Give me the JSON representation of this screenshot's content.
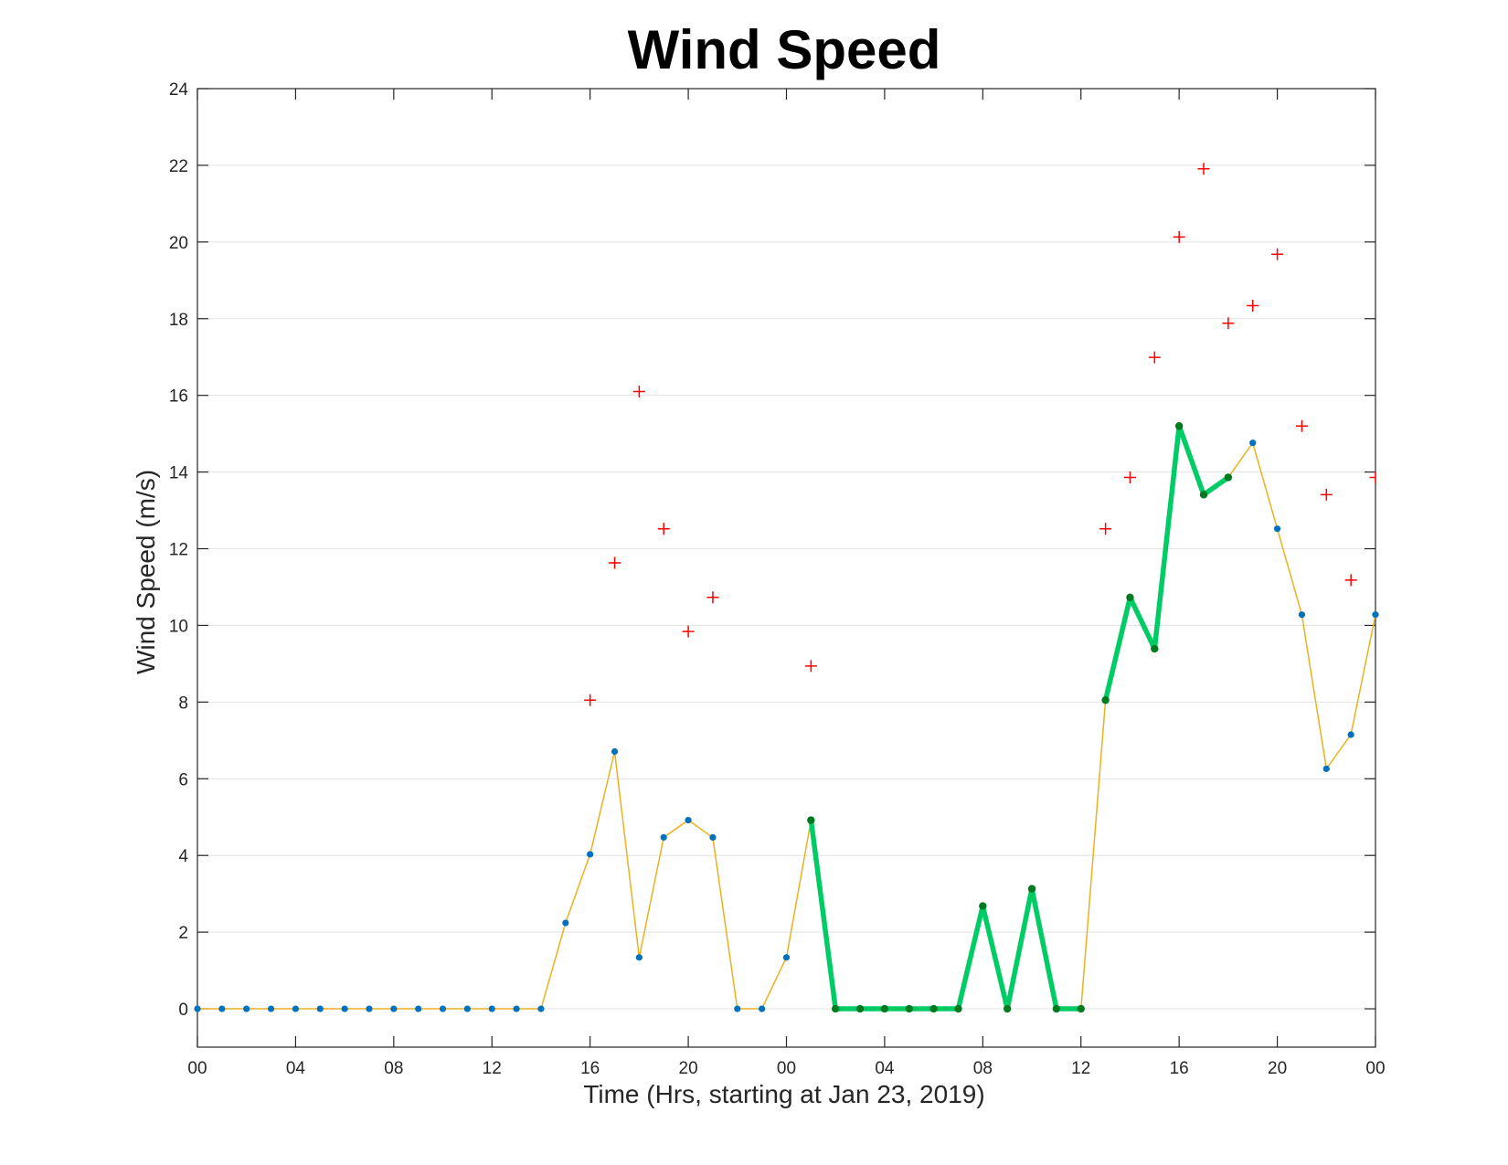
{
  "chart_data": {
    "type": "line",
    "title": "Wind Speed",
    "xlabel": "Time (Hrs, starting at Jan 23, 2019)",
    "ylabel": "Wind Speed (m/s)",
    "xlim": [
      0,
      48
    ],
    "ylim": [
      -1,
      24
    ],
    "grid": "horizontal",
    "x_ticks": [
      0,
      4,
      8,
      12,
      16,
      20,
      24,
      28,
      32,
      36,
      40,
      44,
      48
    ],
    "x_tick_labels": [
      "00",
      "04",
      "08",
      "12",
      "16",
      "20",
      "00",
      "04",
      "08",
      "12",
      "16",
      "20",
      "00"
    ],
    "y_ticks": [
      0,
      2,
      4,
      6,
      8,
      10,
      12,
      14,
      16,
      18,
      20,
      22,
      24
    ],
    "y_tick_labels": [
      "0",
      "2",
      "4",
      "6",
      "8",
      "10",
      "12",
      "14",
      "16",
      "18",
      "20",
      "22",
      "24"
    ],
    "series": [
      {
        "style": "thin-line-dots",
        "line_color": "#EDB120",
        "marker_color": "#0072BD",
        "x": [
          0,
          1,
          2,
          3,
          4,
          5,
          6,
          7,
          8,
          9,
          10,
          11,
          12,
          13,
          14,
          15,
          16,
          17,
          18,
          19,
          20,
          21,
          22,
          23,
          24,
          25,
          26,
          27,
          28,
          29,
          30,
          31,
          32,
          33,
          34,
          35,
          36,
          37,
          38,
          39,
          40,
          41,
          42,
          43,
          44,
          45,
          46,
          47,
          48
        ],
        "y": [
          0,
          0,
          0,
          0,
          0,
          0,
          0,
          0,
          0,
          0,
          0,
          0,
          0,
          0,
          0,
          2.24,
          4.03,
          6.71,
          1.34,
          4.47,
          4.92,
          4.47,
          0,
          0,
          1.34,
          4.92,
          0,
          0,
          0,
          0,
          0,
          0,
          2.68,
          0,
          3.13,
          0,
          0,
          8.05,
          10.73,
          9.39,
          15.2,
          13.41,
          13.86,
          14.76,
          12.52,
          10.28,
          6.26,
          7.15,
          10.28
        ]
      },
      {
        "style": "thick-line-dots",
        "line_color": "#00CC66",
        "marker_color": "#007A1F",
        "segments": [
          {
            "x": [
              25,
              26,
              27,
              28,
              29,
              30,
              31,
              32,
              33,
              34,
              35,
              36
            ],
            "y": [
              4.92,
              0,
              0,
              0,
              0,
              0,
              0,
              2.68,
              0,
              3.13,
              0,
              0
            ]
          },
          {
            "x": [
              37,
              38,
              39,
              40,
              41,
              42
            ],
            "y": [
              8.05,
              10.73,
              9.39,
              15.2,
              13.41,
              13.86
            ]
          }
        ]
      },
      {
        "style": "plus-markers",
        "marker_color": "#FF0000",
        "x": [
          16,
          17,
          18,
          19,
          20,
          21,
          25,
          37,
          38,
          39,
          40,
          41,
          42,
          43,
          44,
          45,
          46,
          47,
          48
        ],
        "y": [
          8.05,
          11.63,
          16.1,
          12.52,
          9.84,
          10.73,
          8.94,
          12.52,
          13.86,
          16.99,
          20.13,
          21.91,
          17.88,
          18.34,
          19.68,
          15.2,
          13.41,
          11.18,
          13.86
        ]
      }
    ]
  }
}
